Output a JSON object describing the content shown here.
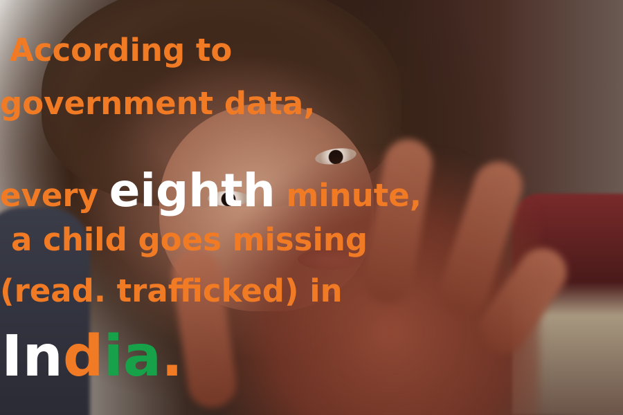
{
  "caption": {
    "line1": "According to",
    "line2": "government data,",
    "line3_before": "every ",
    "line3_emphasis": "eighth",
    "line3_after": " minute,",
    "line4": "a child goes missing",
    "line5": "(read. trafficked) in",
    "country_parts": [
      "In",
      "d",
      "ia",
      "."
    ]
  },
  "colors": {
    "text_orange": "#f17a25",
    "text_white": "#ffffff",
    "text_green": "#17a24a"
  }
}
